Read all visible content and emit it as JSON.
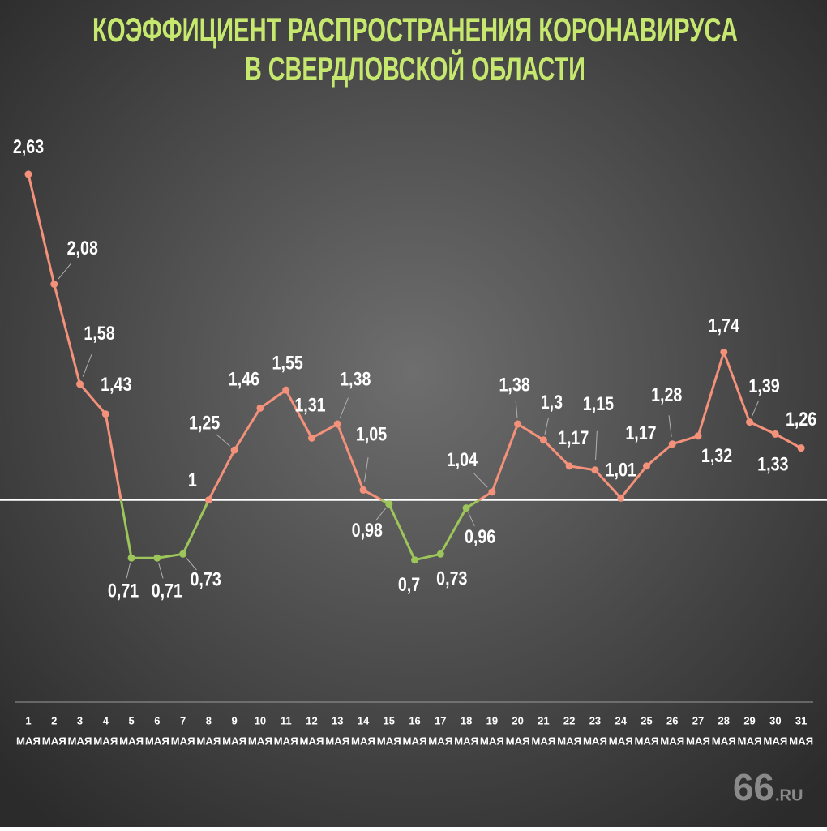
{
  "chart_data": {
    "type": "line",
    "title": [
      "КОЭФФИЦИЕНТ РАСПРОСТРАНЕНИЯ КОРОНАВИРУСА",
      "В СВЕРДЛОВСКОЙ ОБЛАСТИ"
    ],
    "categories": [
      "1",
      "2",
      "3",
      "4",
      "5",
      "6",
      "7",
      "8",
      "9",
      "10",
      "11",
      "12",
      "13",
      "14",
      "15",
      "16",
      "17",
      "18",
      "19",
      "20",
      "21",
      "22",
      "23",
      "24",
      "25",
      "26",
      "27",
      "28",
      "29",
      "30",
      "31"
    ],
    "x_unit": "МАЯ",
    "values": [
      2.63,
      2.08,
      1.58,
      1.43,
      0.71,
      0.71,
      0.73,
      1,
      1.25,
      1.46,
      1.55,
      1.31,
      1.38,
      1.05,
      0.98,
      0.7,
      0.73,
      0.96,
      1.04,
      1.38,
      1.3,
      1.17,
      1.15,
      1.01,
      1.17,
      1.28,
      1.32,
      1.74,
      1.39,
      1.33,
      1.26
    ],
    "value_labels": [
      "2,63",
      "2,08",
      "1,58",
      "1,43",
      "0,71",
      "0,71",
      "0,73",
      "1",
      "1,25",
      "1,46",
      "1,55",
      "1,31",
      "1,38",
      "1,05",
      "0,98",
      "0,7",
      "0,73",
      "0,96",
      "1,04",
      "1,38",
      "1,3",
      "1,17",
      "1,15",
      "1,01",
      "1,17",
      "1,28",
      "1,32",
      "1,74",
      "1,39",
      "1,33",
      "1,26"
    ],
    "threshold": 1,
    "color_above": "#f4917b",
    "color_below": "#9cc55a",
    "threshold_color": "#ffffff",
    "ylim": [
      0.5,
      2.8
    ],
    "watermark": [
      "66",
      ".RU"
    ]
  }
}
